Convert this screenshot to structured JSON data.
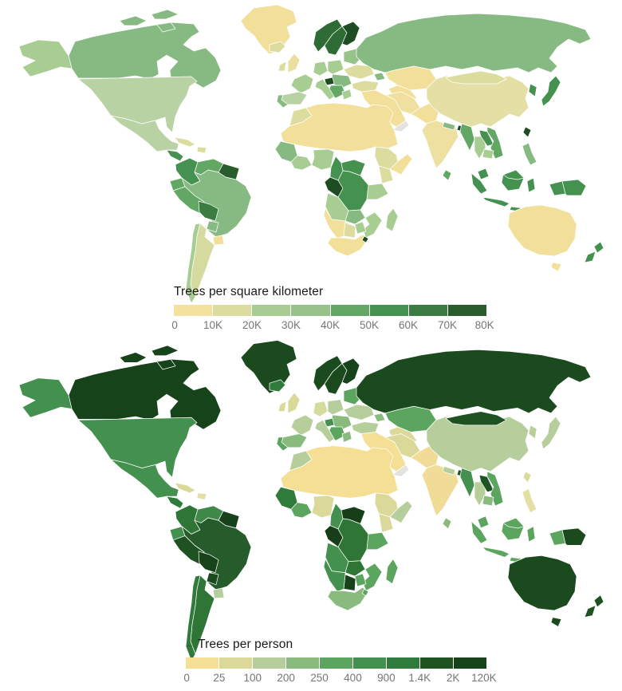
{
  "maps": [
    {
      "id": "trees-per-square-kilometer",
      "legend": {
        "title": "Trees per square kilometer",
        "labels": [
          "0",
          "10K",
          "20K",
          "30K",
          "40K",
          "50K",
          "60K",
          "70K",
          "80K"
        ],
        "colors": [
          "#F4E19D",
          "#DCDC9F",
          "#A8CD92",
          "#97C38B",
          "#62A763",
          "#45914F",
          "#3A7C41",
          "#2A5D2D"
        ]
      }
    },
    {
      "id": "trees-per-person",
      "legend": {
        "title": "Trees per person",
        "cursor_icon": "←",
        "labels": [
          "0",
          "25",
          "100",
          "200",
          "250",
          "400",
          "900",
          "1.4K",
          "2K",
          "120K"
        ],
        "colors": [
          "#F5DF94",
          "#DBD999",
          "#B6CE9B",
          "#89BB7E",
          "#5BA55F",
          "#44904F",
          "#2F7B3B",
          "#1F5420",
          "#17431B"
        ]
      }
    }
  ],
  "colors": {
    "ocean": "#FFFFFF",
    "country_border": "#FFFFFF",
    "no_data": "#E3E3E0",
    "title_text": "#1A1A1A",
    "tick_text": "#757575"
  },
  "countries": {
    "greenland": [
      "#F2DF9A",
      "#1B4A1F"
    ],
    "iceland": [
      "#DCDC9F",
      "#2F7B3B"
    ],
    "canada": [
      "#87BA82",
      "#17431B"
    ],
    "alaska": [
      "#A8CD92",
      "#44904F"
    ],
    "usa": [
      "#B9D2A4",
      "#44904F"
    ],
    "mexico": [
      "#B9D2A4",
      "#44904F"
    ],
    "guatemala": [
      "#45914F",
      "#2F7B3B"
    ],
    "panama": [
      "#3A7C41",
      "#2F7B3B"
    ],
    "cuba": [
      "#DCDC9F",
      "#DBD999"
    ],
    "hispaniola": [
      "#DCDC9F",
      "#E4DFA5"
    ],
    "colombia": [
      "#45914F",
      "#2E7536"
    ],
    "venezuela": [
      "#62A763",
      "#3F8A48"
    ],
    "guyanas": [
      "#2A5D2D",
      "#16411A"
    ],
    "ecuador": [
      "#62A763",
      "#44904F"
    ],
    "peru": [
      "#62A763",
      "#1F5222"
    ],
    "brazil": [
      "#87BA82",
      "#265C2B"
    ],
    "bolivia": [
      "#3A7C41",
      "#17421A"
    ],
    "paraguay": [
      "#87BA82",
      "#1B4A1F"
    ],
    "chile": [
      "#A8CD92",
      "#2F7B3B"
    ],
    "argentina": [
      "#D5DA9E",
      "#2E7536"
    ],
    "uruguay": [
      "#F2DF9A",
      "#B6CE9B"
    ],
    "norway": [
      "#2E6B35",
      "#1B4A1F"
    ],
    "sweden": [
      "#2E6B35",
      "#1B4A1F"
    ],
    "finland": [
      "#1E4D24",
      "#17431B"
    ],
    "uk": [
      "#EBDFA0",
      "#DBD999"
    ],
    "ireland": [
      "#DCDC9F",
      "#DBD999"
    ],
    "france": [
      "#A8CD92",
      "#B6CE9B"
    ],
    "spain": [
      "#B9D2A4",
      "#89BB7E"
    ],
    "portugal": [
      "#87BA82",
      "#5BA55F"
    ],
    "germany": [
      "#A8CD92",
      "#D5DA9E"
    ],
    "centraleurope": [
      "#A8CD92",
      "#B6CE9B"
    ],
    "easterneurope": [
      "#97C38B",
      "#5BA55F"
    ],
    "ukraine": [
      "#DCDC9F",
      "#B6CE9B"
    ],
    "romania": [
      "#87BA82",
      "#89BB7E"
    ],
    "croatia_slovenia": [
      "#1E4D24",
      "#44904F"
    ],
    "balkans": [
      "#62A763",
      "#5BA55F"
    ],
    "italy": [
      "#A8CD92",
      "#B6CE9B"
    ],
    "greece": [
      "#A8CD92",
      "#89BB7E"
    ],
    "turkey": [
      "#DCDC9F",
      "#B6CE9B"
    ],
    "russia": [
      "#87BA82",
      "#1B4A1F"
    ],
    "kazakhstan": [
      "#F2DF9A",
      "#5BA55F"
    ],
    "centralasia": [
      "#F2DF9A",
      "#DBD999"
    ],
    "caucasus": [
      "#87BA82",
      "#89BB7E"
    ],
    "middleeast": [
      "#F2DF9A",
      "#F5DF94"
    ],
    "yemen_nodata": [
      "#E3E3E0",
      "#E3E3E0"
    ],
    "iran": [
      "#F0E0A0",
      "#DBD999"
    ],
    "afghanpak": [
      "#F2DF9A",
      "#F0DC96"
    ],
    "india": [
      "#EDE0A1",
      "#F0DC96"
    ],
    "nepal": [
      "#87BA82",
      "#B6CE9B"
    ],
    "bhutan": [
      "#1E4D24",
      "#1E5223"
    ],
    "srilanka": [
      "#62A763",
      "#89BB7E"
    ],
    "china": [
      "#E4DFA5",
      "#B6CE9B"
    ],
    "mongolia": [
      "#DCDC9F",
      "#1E5223"
    ],
    "koreas": [
      "#45914F",
      "#B6CE9B"
    ],
    "japan": [
      "#45914F",
      "#B6CE9B"
    ],
    "taiwan": [
      "#1E4D24",
      "#DBD999"
    ],
    "myanmar": [
      "#62A763",
      "#44904F"
    ],
    "thailand": [
      "#A8CD92",
      "#B6CE9B"
    ],
    "laos": [
      "#45914F",
      "#1E5424"
    ],
    "vietnam": [
      "#62A763",
      "#5BA55F"
    ],
    "cambodia": [
      "#A8CD92",
      "#89BB7E"
    ],
    "malaysia": [
      "#45914F",
      "#5BA55F"
    ],
    "indonesia": [
      "#45914F",
      "#5BA55F"
    ],
    "philippines": [
      "#87BA82",
      "#E4DFA5"
    ],
    "png": [
      "#45914F",
      "#1B4A1F"
    ],
    "australia": [
      "#F2DF9A",
      "#1B4A1F"
    ],
    "newzealand": [
      "#45914F",
      "#1E5223"
    ],
    "morocco": [
      "#DCDC9F",
      "#B6CE9B"
    ],
    "sahara": [
      "#F2DF9A",
      "#F5DF94"
    ],
    "westafrica": [
      "#87BA82",
      "#2F7B3B"
    ],
    "ghana_ivory": [
      "#A8CD92",
      "#5BA55F"
    ],
    "nigeria": [
      "#A8CD92",
      "#DBD999"
    ],
    "cameroon": [
      "#45914F",
      "#44904F"
    ],
    "car": [
      "#45914F",
      "#163E19"
    ],
    "gabon_congo": [
      "#1E4D24",
      "#163E19"
    ],
    "drc": [
      "#45914F",
      "#2E7536"
    ],
    "ethiopia": [
      "#DCDC9F",
      "#DBD999"
    ],
    "somalia": [
      "#F2DF9A",
      "#B6CE9B"
    ],
    "kenya": [
      "#DCDC9F",
      "#DBD999"
    ],
    "tanzania": [
      "#A8CD92",
      "#5BA55F"
    ],
    "angola": [
      "#A8CD92",
      "#44904F"
    ],
    "zambia": [
      "#87BA82",
      "#2E7536"
    ],
    "mozambique": [
      "#A8CD92",
      "#5BA55F"
    ],
    "zimbabwe": [
      "#A8CD92",
      "#5BA55F"
    ],
    "botswana": [
      "#DCDC9F",
      "#17421A"
    ],
    "namibia": [
      "#F2DF9A",
      "#44904F"
    ],
    "southafrica": [
      "#F2DF9A",
      "#89BB7E"
    ],
    "eswatini": [
      "#1E4D24",
      "#5BA55F"
    ],
    "madagascar": [
      "#A8CD92",
      "#5BA55F"
    ],
    "caspian": [
      "#FFFFFF",
      "#FFFFFF"
    ]
  }
}
